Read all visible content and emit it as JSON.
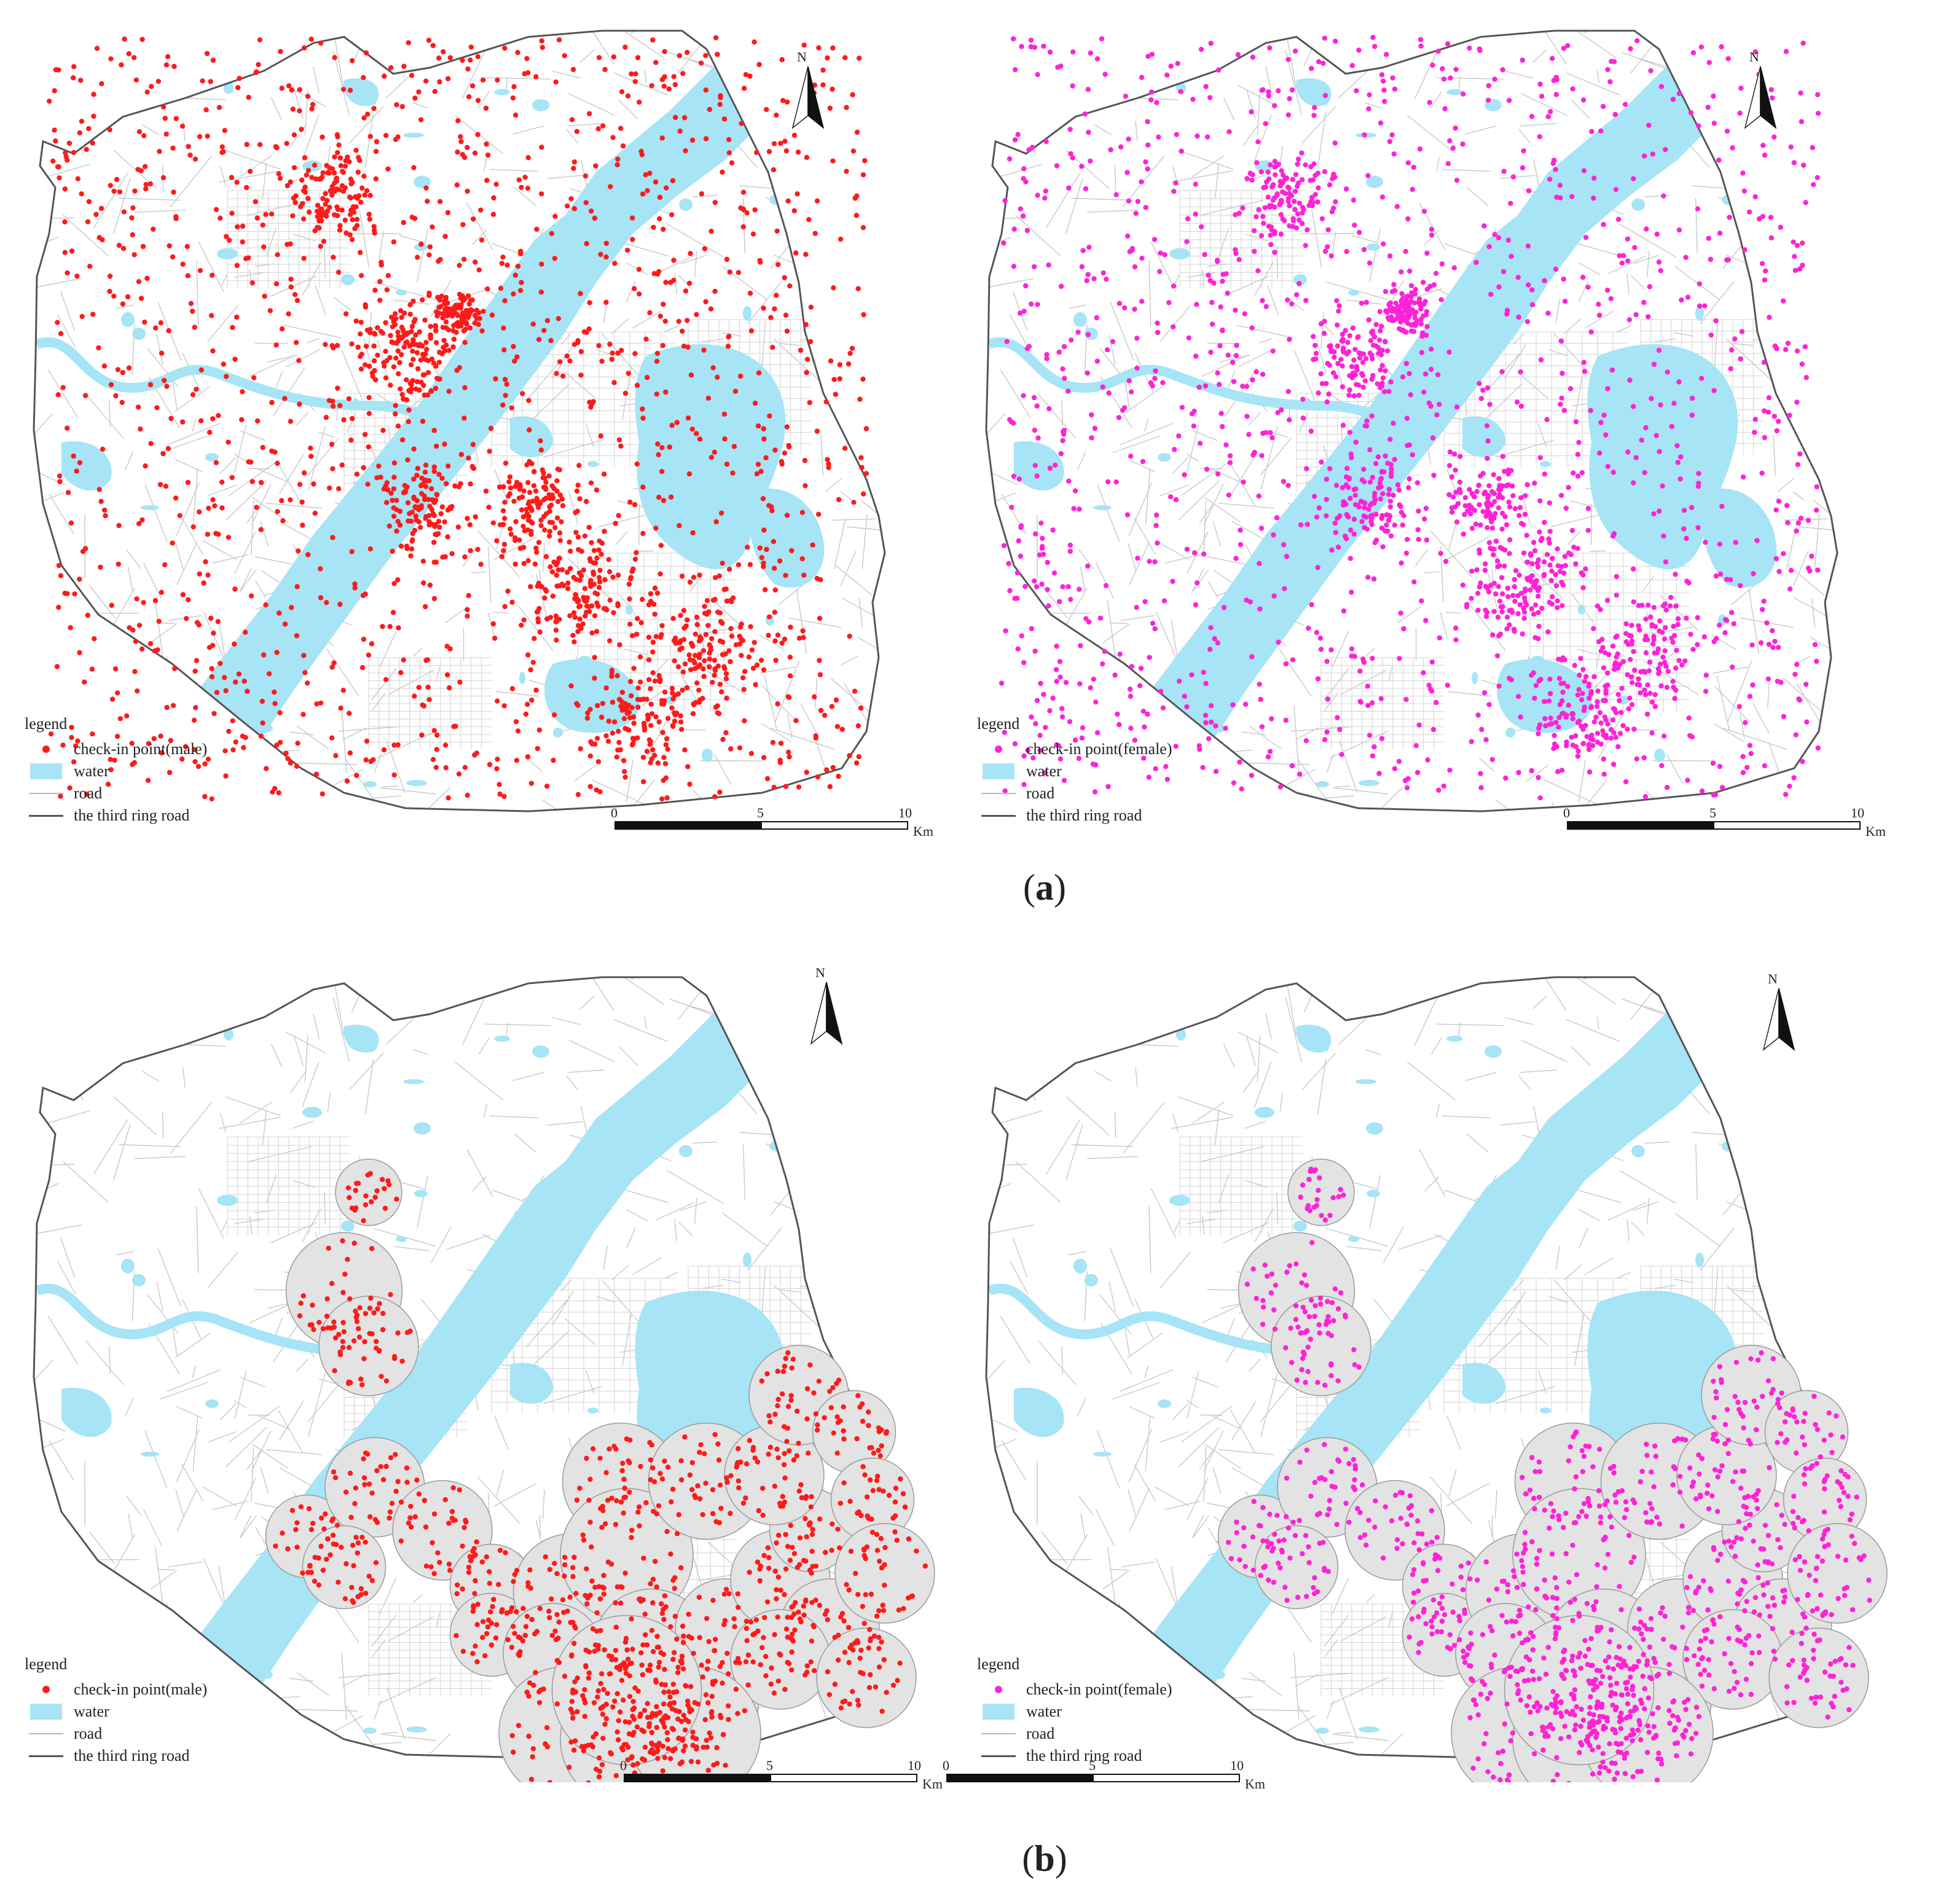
{
  "captions": {
    "a": "a",
    "b": "b"
  },
  "north_label": "N",
  "legend": {
    "title": "legend",
    "male_label": "check-in point(male)",
    "female_label": "check-in point(female)",
    "water_label": "water",
    "road_label": "road",
    "ring_label": "the third ring road"
  },
  "scalebar": {
    "tick0": "0",
    "tick5": "5",
    "tick10": "10",
    "unit": "Km"
  },
  "colors": {
    "male": "#ff1a1a",
    "female": "#ff22d6",
    "water": "#a6e4f6",
    "road": "#c8c8c8",
    "ring": "#555555",
    "hotspot": "#e3e3e3"
  },
  "icons": {
    "north_arrow": "north-arrow-icon"
  }
}
